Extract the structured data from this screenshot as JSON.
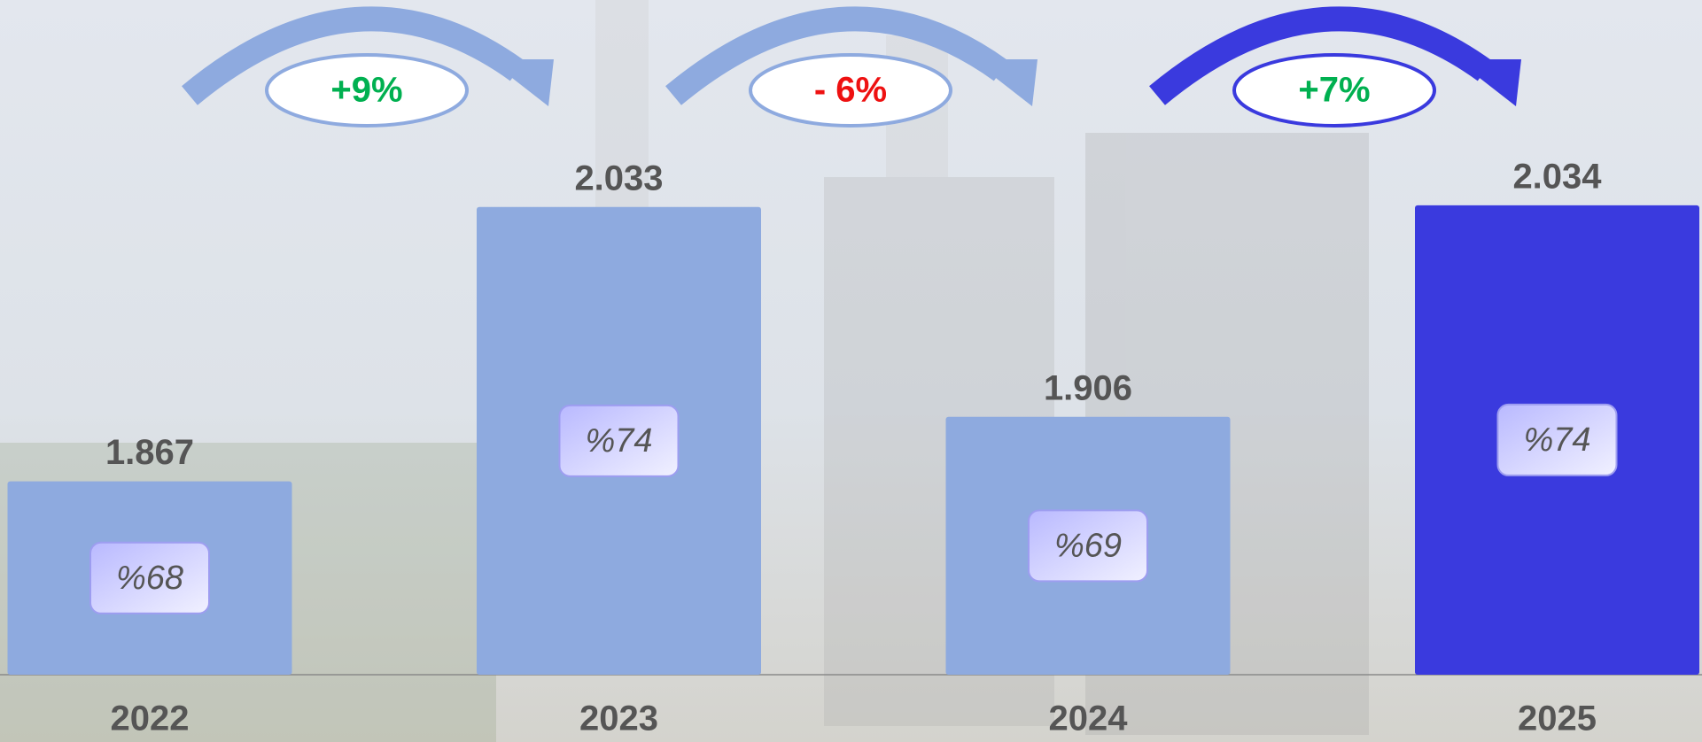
{
  "chart_data": {
    "type": "bar",
    "categories": [
      "2022",
      "2023",
      "2024",
      "2025"
    ],
    "values": [
      1.867,
      2.033,
      1.906,
      2.034
    ],
    "colors": [
      "#8eaadf",
      "#8eaadf",
      "#8eaadf",
      "#3a3ade"
    ],
    "badge_labels": [
      "%68",
      "%74",
      "%69",
      "%74"
    ],
    "changes": [
      {
        "label": "+9%",
        "color": "#00b050",
        "arrow_color": "#8eaadf"
      },
      {
        "label": "- 6%",
        "color": "#ee1111",
        "arrow_color": "#8eaadf"
      },
      {
        "label": "+7%",
        "color": "#00b050",
        "arrow_color": "#3a3ade"
      }
    ],
    "ylim": [
      1.75,
      2.05
    ]
  }
}
